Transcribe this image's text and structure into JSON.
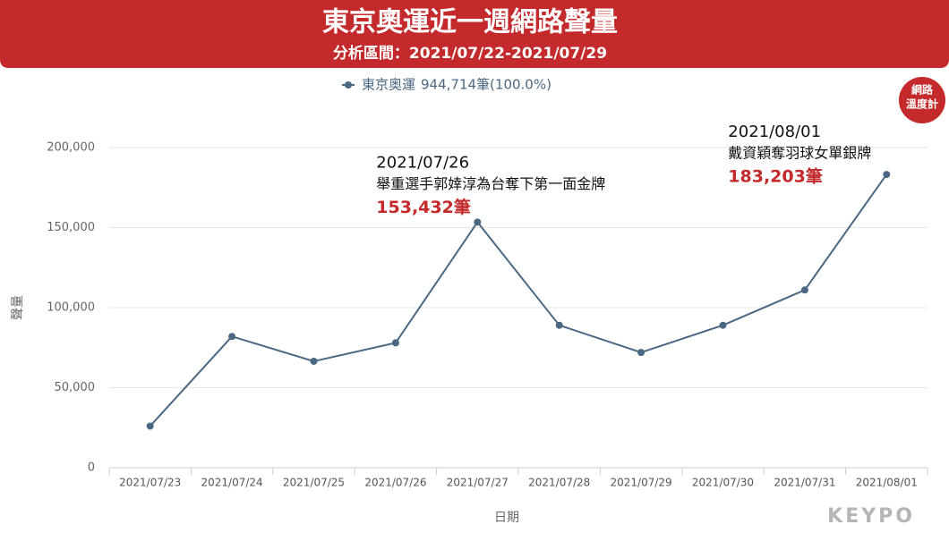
{
  "chart_data": {
    "type": "line",
    "title": "東京奧運近一週網路聲量",
    "subtitle": "分析區間：2021/07/22-2021/07/29",
    "x_label": "日期",
    "y_label": "聲量",
    "categories": [
      "2021/07/23",
      "2021/07/24",
      "2021/07/25",
      "2021/07/26",
      "2021/07/27",
      "2021/07/28",
      "2021/07/29",
      "2021/07/30",
      "2021/07/31",
      "2021/08/01"
    ],
    "series": [
      {
        "name": "東京奧運",
        "color": "#4a6882",
        "legend_note": "944,714筆(100.0%)",
        "values": [
          26000,
          82000,
          66500,
          78000,
          153432,
          89000,
          72000,
          89000,
          111000,
          183203
        ],
        "value_labels": [
          null,
          null,
          null,
          null,
          "153,432筆",
          null,
          null,
          null,
          null,
          "183,203筆"
        ]
      }
    ],
    "annotations": [
      {
        "date": "2021/07/26",
        "text": "舉重選手郭婞淳為台奪下第一面金牌"
      },
      {
        "date": "2021/08/01",
        "text": "戴資穎奪羽球女單銀牌"
      }
    ],
    "ylim": [
      0,
      200000
    ],
    "yticks": [
      0,
      {
        "value": 50000,
        "label": "50,000"
      },
      {
        "value": 100000,
        "label": "100,000"
      },
      {
        "value": 150000,
        "label": "150,000"
      },
      {
        "value": 200000,
        "label": "200,000"
      }
    ],
    "grid": true,
    "badge": [
      "網路",
      "溫度計"
    ],
    "logo": "KEYPO"
  }
}
